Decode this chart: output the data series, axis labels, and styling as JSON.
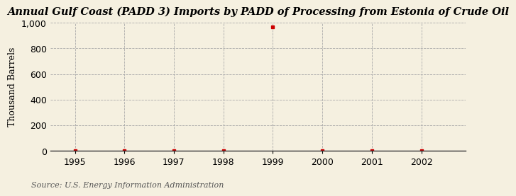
{
  "title": "Annual Gulf Coast (PADD 3) Imports by PADD of Processing from Estonia of Crude Oil",
  "ylabel": "Thousand Barrels",
  "source": "Source: U.S. Energy Information Administration",
  "background_color": "#f5f0e0",
  "years": [
    1995,
    1996,
    1997,
    1998,
    1999,
    2000,
    2001,
    2002
  ],
  "values": [
    0,
    0,
    0,
    0,
    966,
    0,
    0,
    0
  ],
  "ylim": [
    0,
    1000
  ],
  "xlim": [
    1994.5,
    2002.9
  ],
  "yticks": [
    0,
    200,
    400,
    600,
    800,
    1000
  ],
  "ytick_labels": [
    "0",
    "200",
    "400",
    "600",
    "800",
    "1,000"
  ],
  "xticks": [
    1995,
    1996,
    1997,
    1998,
    1999,
    2000,
    2001,
    2002
  ],
  "marker_color": "#cc0000",
  "grid_color": "#aaaaaa",
  "title_fontsize": 10.5,
  "axis_fontsize": 9,
  "source_fontsize": 8
}
